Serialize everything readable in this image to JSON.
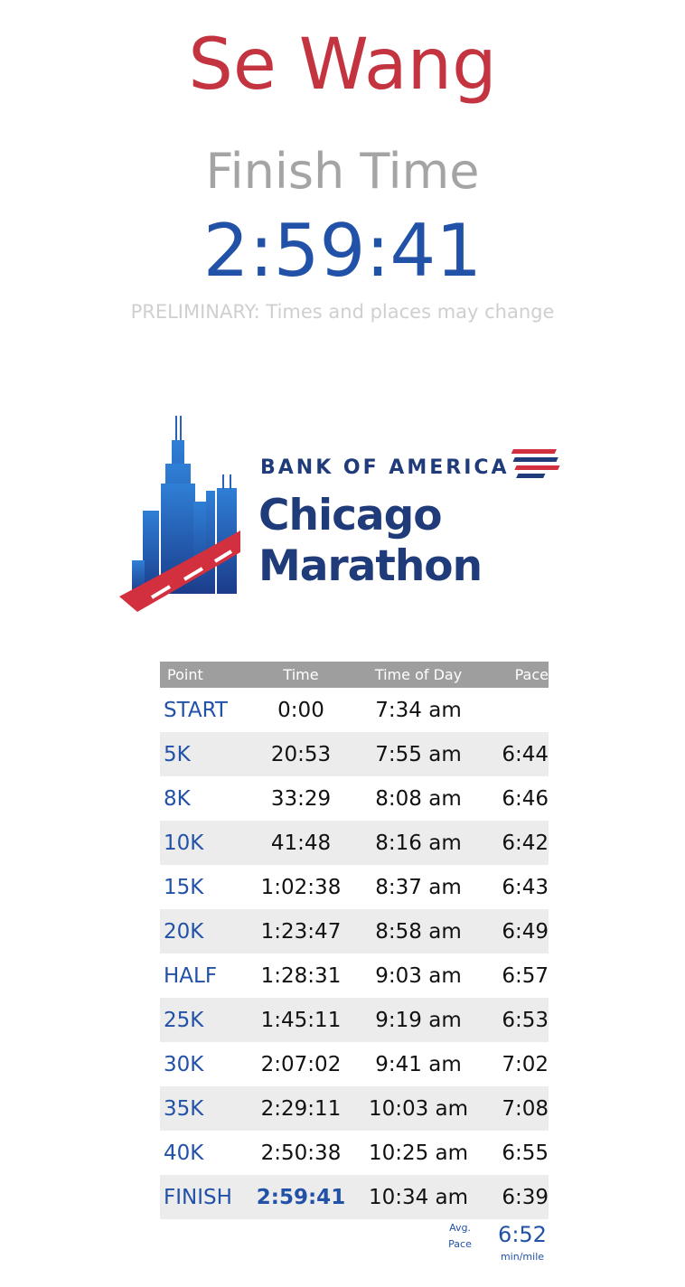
{
  "runner": {
    "name": "Se Wang"
  },
  "finish": {
    "label": "Finish Time",
    "time": "2:59:41",
    "notice": "PRELIMINARY: Times and places may change"
  },
  "logo": {
    "sponsor": "BANK OF AMERICA",
    "line1": "Chicago",
    "line2": "Marathon",
    "brand_colors": {
      "navy": "#1f3b7a",
      "blue": "#2a62b8",
      "red": "#d3303f"
    },
    "icon": "chicago-skyline-road-logo"
  },
  "table": {
    "headers": {
      "point": "Point",
      "time": "Time",
      "time_of_day": "Time of Day",
      "pace": "Pace"
    },
    "rows": [
      {
        "point": "START",
        "time": "0:00",
        "time_of_day": "7:34 am",
        "pace": ""
      },
      {
        "point": "5K",
        "time": "20:53",
        "time_of_day": "7:55 am",
        "pace": "6:44"
      },
      {
        "point": "8K",
        "time": "33:29",
        "time_of_day": "8:08 am",
        "pace": "6:46"
      },
      {
        "point": "10K",
        "time": "41:48",
        "time_of_day": "8:16 am",
        "pace": "6:42"
      },
      {
        "point": "15K",
        "time": "1:02:38",
        "time_of_day": "8:37 am",
        "pace": "6:43"
      },
      {
        "point": "20K",
        "time": "1:23:47",
        "time_of_day": "8:58 am",
        "pace": "6:49"
      },
      {
        "point": "HALF",
        "time": "1:28:31",
        "time_of_day": "9:03 am",
        "pace": "6:57"
      },
      {
        "point": "25K",
        "time": "1:45:11",
        "time_of_day": "9:19 am",
        "pace": "6:53"
      },
      {
        "point": "30K",
        "time": "2:07:02",
        "time_of_day": "9:41 am",
        "pace": "7:02"
      },
      {
        "point": "35K",
        "time": "2:29:11",
        "time_of_day": "10:03 am",
        "pace": "7:08"
      },
      {
        "point": "40K",
        "time": "2:50:38",
        "time_of_day": "10:25 am",
        "pace": "6:55"
      },
      {
        "point": "FINISH",
        "time": "2:59:41",
        "time_of_day": "10:34 am",
        "pace": "6:39"
      }
    ]
  },
  "avg_pace": {
    "label_line1": "Avg.",
    "label_line2": "Pace",
    "value": "6:52",
    "unit": "min/mile"
  },
  "colors": {
    "name_red": "#c33440",
    "accent_blue": "#2251a8",
    "label_gray": "#a4a4a4"
  }
}
